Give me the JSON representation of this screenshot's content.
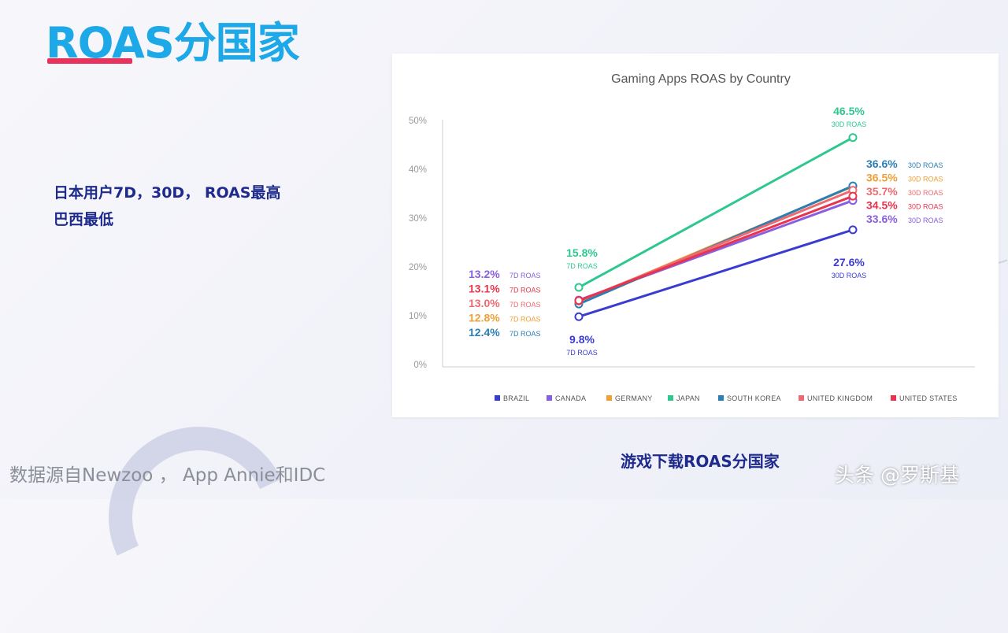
{
  "slide": {
    "title": "ROAS分国家",
    "note_lines": [
      "日本用户7D，30D， ROAS最高",
      "巴西最低"
    ],
    "source": "数据源自Newzoo ， App Annie和IDC",
    "caption": "游戏下载ROAS分国家",
    "watermark": "头条 @罗斯基",
    "colors": {
      "title": "#1da8e8",
      "underline": "#e8345c",
      "note": "#1e2a8c"
    }
  },
  "chart_data": {
    "type": "line",
    "title": "Gaming Apps ROAS by Country",
    "x": [
      "7D",
      "30D"
    ],
    "ylim": [
      0,
      50
    ],
    "yticks": [
      "0%",
      "10%",
      "20%",
      "30%",
      "40%",
      "50%"
    ],
    "grid": false,
    "legend_position": "bottom",
    "series": [
      {
        "name": "BRAZIL",
        "color": "#3a3bd1",
        "values": [
          9.8,
          27.6
        ],
        "labels": [
          "9.8%",
          "27.6%"
        ],
        "sublabels": [
          "7D ROAS",
          "30D ROAS"
        ]
      },
      {
        "name": "CANADA",
        "color": "#8a5ee0",
        "values": [
          13.2,
          33.6
        ],
        "labels": [
          "13.2%",
          "33.6%"
        ],
        "sublabels": [
          "7D ROAS",
          "30D ROAS"
        ]
      },
      {
        "name": "GERMANY",
        "color": "#f0a035",
        "values": [
          12.8,
          36.5
        ],
        "labels": [
          "12.8%",
          "36.5%"
        ],
        "sublabels": [
          "7D ROAS",
          "30D ROAS"
        ]
      },
      {
        "name": "JAPAN",
        "color": "#2ec88f",
        "values": [
          15.8,
          46.5
        ],
        "labels": [
          "15.8%",
          "46.5%"
        ],
        "sublabels": [
          "7D ROAS",
          "30D ROAS"
        ]
      },
      {
        "name": "SOUTH KOREA",
        "color": "#2a7fb4",
        "values": [
          12.4,
          36.6
        ],
        "labels": [
          "12.4%",
          "36.6%"
        ],
        "sublabels": [
          "7D ROAS",
          "30D ROAS"
        ]
      },
      {
        "name": "UNITED KINGDOM",
        "color": "#ee6a72",
        "values": [
          13.0,
          35.7
        ],
        "labels": [
          "13.0%",
          "35.7%"
        ],
        "sublabels": [
          "7D ROAS",
          "30D ROAS"
        ]
      },
      {
        "name": "UNITED STATES",
        "color": "#e8344c",
        "values": [
          13.1,
          34.5
        ],
        "labels": [
          "13.1%",
          "34.5%"
        ],
        "sublabels": [
          "7D ROAS",
          "30D ROAS"
        ]
      }
    ]
  }
}
